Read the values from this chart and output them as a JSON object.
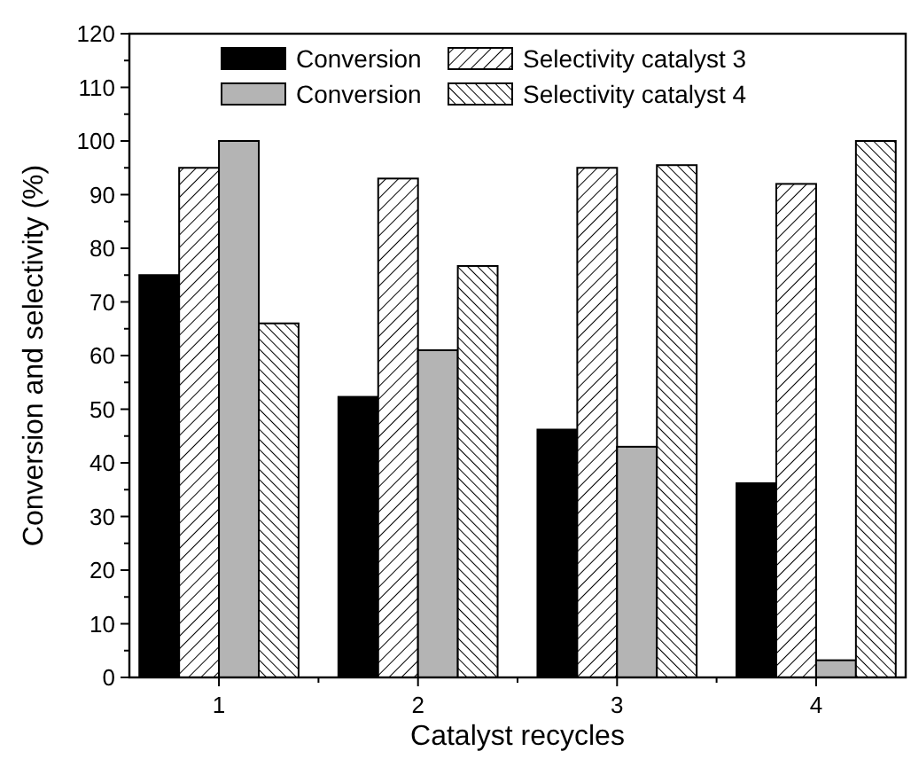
{
  "chart_data": {
    "type": "bar",
    "xlabel": "Catalyst recycles",
    "ylabel": "Conversion and selectivity (%)",
    "categories": [
      "1",
      "2",
      "3",
      "4"
    ],
    "series": [
      {
        "name": "Conversion",
        "color": "#000000",
        "values": [
          75,
          52.3,
          46.2,
          36.2
        ]
      },
      {
        "name": "Selectivity catalyst 3",
        "color": "#000000",
        "values": [
          95,
          93,
          95,
          92
        ]
      },
      {
        "name": "Conversion",
        "color": "#b4b4b4",
        "values": [
          100,
          61,
          43,
          3.2
        ]
      },
      {
        "name": "Selectivity catalyst 4",
        "color": "#000000",
        "values": [
          66,
          76.7,
          95.5,
          100
        ]
      }
    ],
    "ylim": [
      0,
      120
    ],
    "yticks": [
      0,
      10,
      20,
      30,
      40,
      50,
      60,
      70,
      80,
      90,
      100,
      110,
      120
    ],
    "grid": false,
    "legend": "top"
  }
}
